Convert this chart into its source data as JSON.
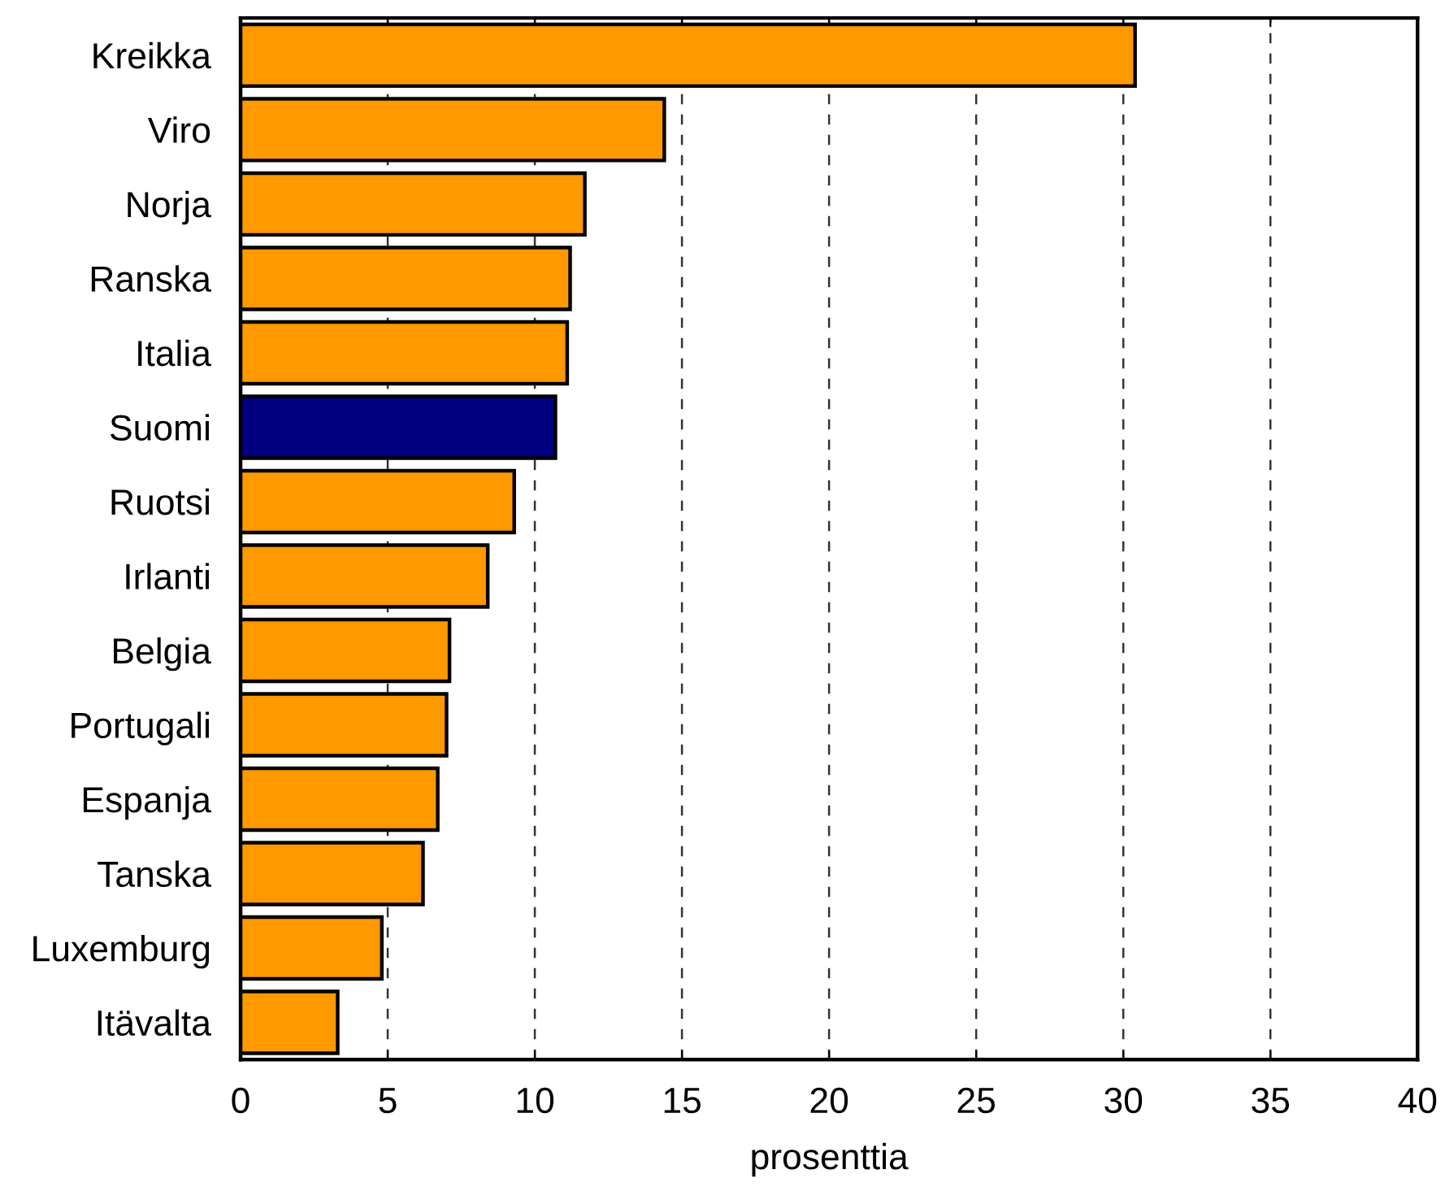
{
  "chart_data": {
    "type": "bar",
    "orientation": "horizontal",
    "xlabel": "prosenttia",
    "categories": [
      "Kreikka",
      "Viro",
      "Norja",
      "Ranska",
      "Italia",
      "Suomi",
      "Ruotsi",
      "Irlanti",
      "Belgia",
      "Portugali",
      "Espanja",
      "Tanska",
      "Luxemburg",
      "Itävalta"
    ],
    "values": [
      30.4,
      14.4,
      11.7,
      11.2,
      11.1,
      10.7,
      9.3,
      8.4,
      7.1,
      7.0,
      6.7,
      6.2,
      4.8,
      3.3
    ],
    "colors": [
      "#ff9900",
      "#ff9900",
      "#ff9900",
      "#ff9900",
      "#ff9900",
      "#000080",
      "#ff9900",
      "#ff9900",
      "#ff9900",
      "#ff9900",
      "#ff9900",
      "#ff9900",
      "#ff9900",
      "#ff9900"
    ],
    "xlim": [
      0,
      40
    ],
    "xticks": [
      0,
      5,
      10,
      15,
      20,
      25,
      30,
      35,
      40
    ],
    "grid": "x"
  }
}
